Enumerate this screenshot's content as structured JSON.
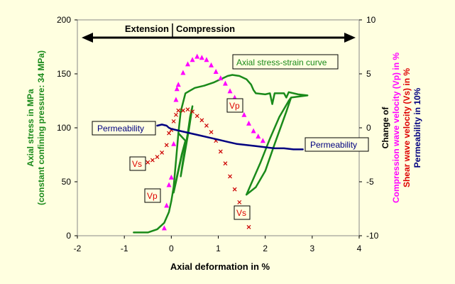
{
  "chart_data": {
    "type": "scatter",
    "x": {
      "label": "Axial deformation in %",
      "range": [
        -2,
        4
      ],
      "ticks": [
        "-2",
        "-1",
        "0",
        "1",
        "2",
        "3",
        "4"
      ]
    },
    "y_left": {
      "label_lines": [
        "Axial stress in MPa",
        "(constant confining pressure: 34 MPa)"
      ],
      "range": [
        0,
        200
      ],
      "ticks": [
        "0",
        "50",
        "100",
        "150",
        "200"
      ]
    },
    "y_right": {
      "label_lines": [
        {
          "text": "Change of",
          "color": "#000000"
        },
        {
          "text": "Compression wave velocity (Vp) in %",
          "color": "#ff00ff"
        },
        {
          "text": "Shear wave velocity (Vs) in %",
          "color": "#dd0000"
        },
        {
          "text": "Permeability in 10%",
          "color": "#000080"
        }
      ],
      "range": [
        -10,
        10
      ],
      "ticks": [
        "-10",
        "-5",
        "0",
        "5",
        "10"
      ]
    },
    "grid": false,
    "header": {
      "left": "Extension",
      "right": "Compression"
    },
    "annotations": {
      "stress_strain": "Axial stress-strain curve",
      "permeability_left": "Permeability",
      "permeability_right": "Permeability",
      "vs_top": "Vs",
      "vp_top": "Vp",
      "vp_bottom": "Vp",
      "vs_bottom": "Vs"
    },
    "series": [
      {
        "id": "stress",
        "axis": "left",
        "color": "#1a8a1a",
        "marker": "line",
        "points": [
          [
            -0.8,
            3
          ],
          [
            -0.5,
            3
          ],
          [
            -0.3,
            6
          ],
          [
            -0.15,
            12
          ],
          [
            -0.05,
            22
          ],
          [
            0.0,
            32
          ],
          [
            0.05,
            45
          ],
          [
            0.1,
            70
          ],
          [
            0.15,
            95
          ],
          [
            0.2,
            115
          ],
          [
            0.3,
            132
          ],
          [
            0.5,
            137
          ],
          [
            0.7,
            139
          ],
          [
            0.9,
            142
          ],
          [
            1.0,
            144
          ],
          [
            1.1,
            146
          ],
          [
            1.2,
            148
          ],
          [
            1.3,
            149
          ],
          [
            1.45,
            148
          ],
          [
            1.6,
            145
          ],
          [
            1.7,
            140
          ],
          [
            1.75,
            135
          ],
          [
            1.8,
            132
          ],
          [
            2.0,
            131
          ],
          [
            2.1,
            132
          ],
          [
            2.15,
            122
          ],
          [
            2.2,
            132
          ],
          [
            2.4,
            132
          ],
          [
            2.45,
            128
          ],
          [
            2.5,
            133
          ],
          [
            2.7,
            131
          ],
          [
            2.9,
            130
          ],
          [
            2.55,
            128
          ],
          [
            2.45,
            115
          ],
          [
            2.2,
            85
          ],
          [
            2.0,
            60
          ],
          [
            1.8,
            45
          ],
          [
            1.6,
            38
          ],
          [
            1.7,
            48
          ],
          [
            1.9,
            68
          ],
          [
            2.1,
            90
          ],
          [
            2.3,
            110
          ],
          [
            2.5,
            125
          ],
          [
            2.55,
            128
          ]
        ]
      },
      {
        "id": "stress_loop1",
        "axis": "left",
        "color": "#1a8a1a",
        "marker": "line",
        "points": [
          [
            0.15,
            95
          ],
          [
            0.3,
            88
          ],
          [
            0.2,
            70
          ],
          [
            0.1,
            50
          ],
          [
            0.05,
            40
          ],
          [
            0.12,
            55
          ],
          [
            0.22,
            75
          ],
          [
            0.3,
            88
          ]
        ]
      },
      {
        "id": "stress_loop2",
        "axis": "left",
        "color": "#1a8a1a",
        "marker": "line",
        "points": [
          [
            0.45,
            120
          ],
          [
            0.4,
            110
          ],
          [
            0.35,
            95
          ],
          [
            0.25,
            70
          ],
          [
            0.2,
            55
          ],
          [
            0.28,
            75
          ],
          [
            0.38,
            100
          ],
          [
            0.45,
            120
          ]
        ]
      },
      {
        "id": "vp",
        "axis": "right",
        "color": "#ff00ff",
        "marker": "triangle",
        "points": [
          [
            -0.15,
            -9.3
          ],
          [
            -0.1,
            -7.2
          ],
          [
            -0.05,
            -5.3
          ],
          [
            0.0,
            -4.6
          ],
          [
            0.05,
            -1.5
          ],
          [
            0.1,
            2.6
          ],
          [
            0.12,
            3.6
          ],
          [
            0.15,
            4.0
          ],
          [
            0.25,
            5.1
          ],
          [
            0.35,
            5.9
          ],
          [
            0.45,
            6.3
          ],
          [
            0.55,
            6.6
          ],
          [
            0.65,
            6.5
          ],
          [
            0.75,
            6.3
          ],
          [
            0.85,
            5.8
          ],
          [
            0.95,
            5.2
          ],
          [
            1.05,
            4.6
          ],
          [
            1.15,
            4.1
          ],
          [
            1.25,
            3.4
          ],
          [
            1.35,
            2.8
          ],
          [
            1.45,
            2.0
          ],
          [
            1.55,
            1.2
          ],
          [
            1.65,
            0.4
          ],
          [
            1.75,
            -0.3
          ],
          [
            1.85,
            -0.8
          ],
          [
            1.95,
            -1.2
          ]
        ]
      },
      {
        "id": "vs",
        "axis": "right",
        "color": "#cc0000",
        "marker": "x",
        "points": [
          [
            -0.5,
            -3.2
          ],
          [
            -0.4,
            -3.0
          ],
          [
            -0.3,
            -2.7
          ],
          [
            -0.2,
            -2.3
          ],
          [
            -0.1,
            -1.6
          ],
          [
            -0.05,
            -0.5
          ],
          [
            0.0,
            -0.2
          ],
          [
            0.05,
            0.6
          ],
          [
            0.1,
            1.2
          ],
          [
            0.15,
            1.6
          ],
          [
            0.25,
            1.6
          ],
          [
            0.35,
            1.7
          ],
          [
            0.45,
            1.5
          ],
          [
            0.55,
            1.1
          ],
          [
            0.65,
            0.7
          ],
          [
            0.75,
            0.2
          ],
          [
            0.85,
            -0.4
          ],
          [
            0.95,
            -1.2
          ],
          [
            1.05,
            -2.2
          ],
          [
            1.15,
            -3.3
          ],
          [
            1.25,
            -4.5
          ],
          [
            1.35,
            -5.7
          ],
          [
            1.45,
            -6.9
          ],
          [
            1.55,
            -8.0
          ],
          [
            1.65,
            -9.2
          ]
        ]
      },
      {
        "id": "perm",
        "axis": "right",
        "color": "#000080",
        "marker": "line",
        "points": [
          [
            -0.3,
            0.2
          ],
          [
            -0.2,
            0.3
          ],
          [
            -0.1,
            0.2
          ],
          [
            -0.05,
            0.0
          ],
          [
            0.0,
            -0.1
          ],
          [
            0.2,
            -0.3
          ],
          [
            0.4,
            -0.5
          ],
          [
            0.6,
            -0.7
          ],
          [
            0.8,
            -0.9
          ],
          [
            1.0,
            -1.1
          ],
          [
            1.2,
            -1.3
          ],
          [
            1.4,
            -1.5
          ],
          [
            1.6,
            -1.6
          ],
          [
            1.8,
            -1.7
          ],
          [
            2.0,
            -1.8
          ],
          [
            2.2,
            -1.9
          ],
          [
            2.4,
            -1.9
          ],
          [
            2.6,
            -2.0
          ],
          [
            2.8,
            -2.0
          ]
        ]
      }
    ]
  }
}
